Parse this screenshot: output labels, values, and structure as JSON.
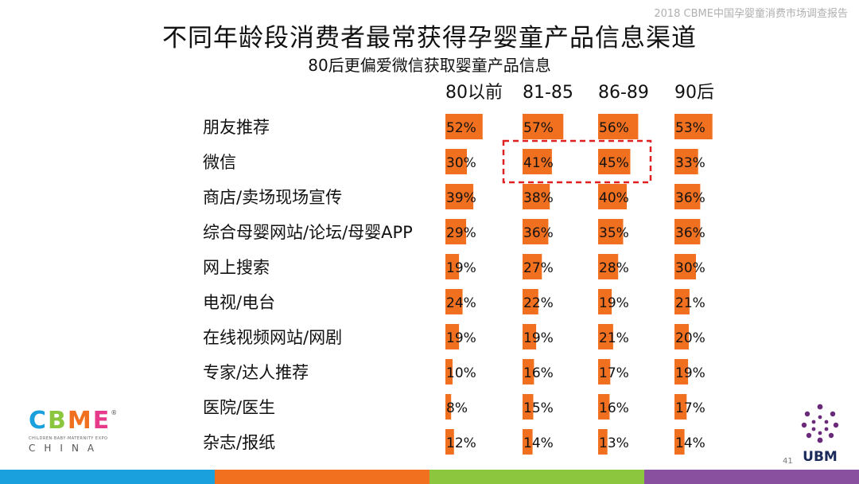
{
  "header_note": "2018 CBME中国孕婴童消费市场调查报告",
  "title": "不同年龄段消费者最常获得孕婴童产品信息渠道",
  "subtitle": "80后更偏爱微信获取婴童产品信息",
  "page_number": "41",
  "logo": {
    "letters": [
      "C",
      "B",
      "M",
      "E"
    ],
    "registered": "®",
    "tagline": "CHILDREN·BABY·MATERNITY EXPO",
    "china": "CHINA"
  },
  "ubm_label": "UBM",
  "colors": {
    "bar": "#f07020",
    "highlight_box": "#e02020",
    "footer": [
      "#1aa0dc",
      "#f07020",
      "#8cc63e",
      "#8a50a0"
    ]
  },
  "chart_data": {
    "type": "bar",
    "title": "不同年龄段消费者最常获得孕婴童产品信息渠道",
    "subtitle": "80后更偏爱微信获取婴童产品信息",
    "categories": [
      "朋友推荐",
      "微信",
      "商店/卖场现场宣传",
      "综合母婴网站/论坛/母婴APP",
      "网上搜索",
      "电视/电台",
      "在线视频网站/网剧",
      "专家/达人推荐",
      "医院/医生",
      "杂志/报纸"
    ],
    "series": [
      {
        "name": "80以前",
        "values": [
          52,
          30,
          39,
          29,
          19,
          24,
          19,
          10,
          8,
          12
        ]
      },
      {
        "name": "81-85",
        "values": [
          57,
          41,
          38,
          36,
          27,
          22,
          19,
          16,
          15,
          14
        ]
      },
      {
        "name": "86-89",
        "values": [
          56,
          45,
          40,
          35,
          28,
          19,
          21,
          17,
          16,
          13
        ]
      },
      {
        "name": "90后",
        "values": [
          53,
          33,
          36,
          36,
          30,
          21,
          20,
          19,
          17,
          14
        ]
      }
    ],
    "value_suffix": "%",
    "highlight": {
      "category": "微信",
      "series": [
        "81-85",
        "86-89"
      ]
    }
  }
}
